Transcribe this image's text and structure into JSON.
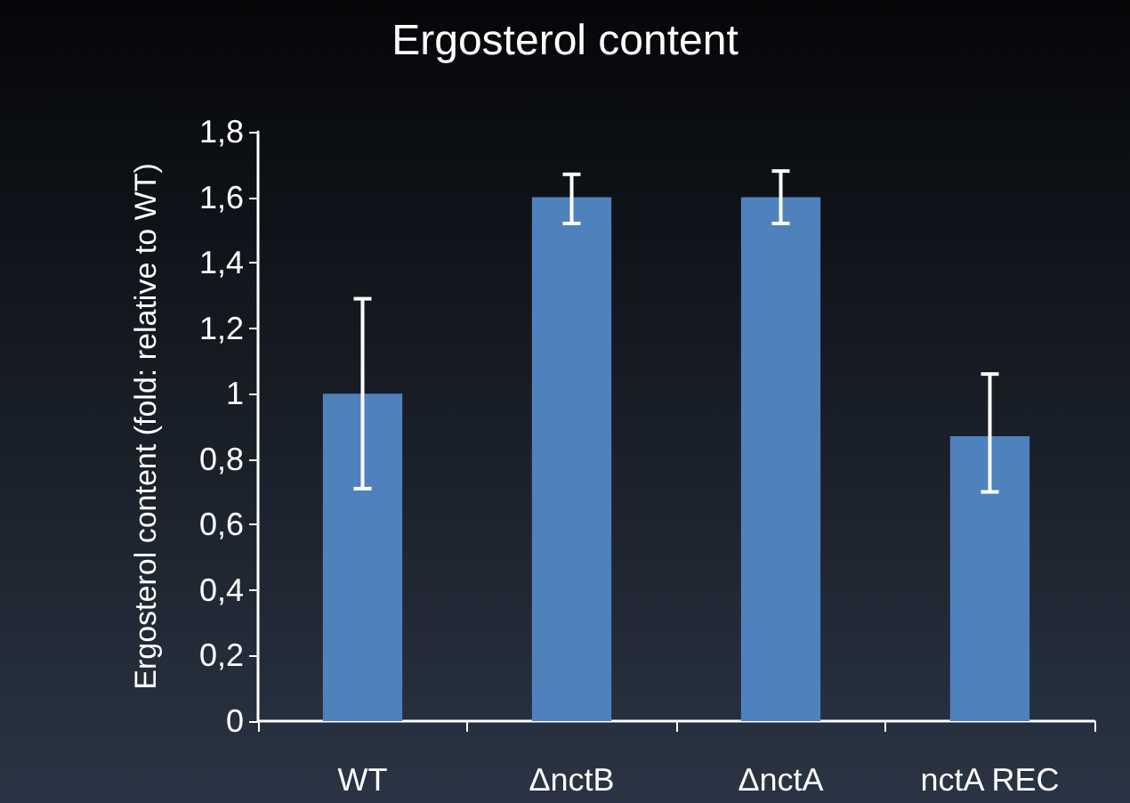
{
  "chart_data": {
    "type": "bar",
    "title": "Ergosterol content",
    "ylabel": "Ergosterol content (fold: relative to WT)",
    "categories": [
      "WT",
      "ΔnctB",
      "ΔnctA",
      "nctA REC"
    ],
    "values": [
      1.0,
      1.6,
      1.6,
      0.87
    ],
    "errors": [
      [
        0.71,
        1.29
      ],
      [
        1.52,
        1.67
      ],
      [
        1.52,
        1.68
      ],
      [
        0.7,
        1.06
      ]
    ],
    "color": "#4f81bd",
    "ylim": [
      0,
      1.8
    ],
    "yticks": [
      0,
      {
        "value": 0.2,
        "label": "0,2"
      },
      {
        "value": 0.4,
        "label": "0,4"
      },
      {
        "value": 0.6,
        "label": "0,6"
      },
      {
        "value": 0.8,
        "label": "0,8"
      },
      1,
      {
        "value": 1.2,
        "label": "1,2"
      },
      {
        "value": 1.4,
        "label": "1,4"
      },
      {
        "value": 1.6,
        "label": "1,6"
      },
      {
        "value": 1.8,
        "label": "1,8"
      }
    ],
    "grid": false
  }
}
